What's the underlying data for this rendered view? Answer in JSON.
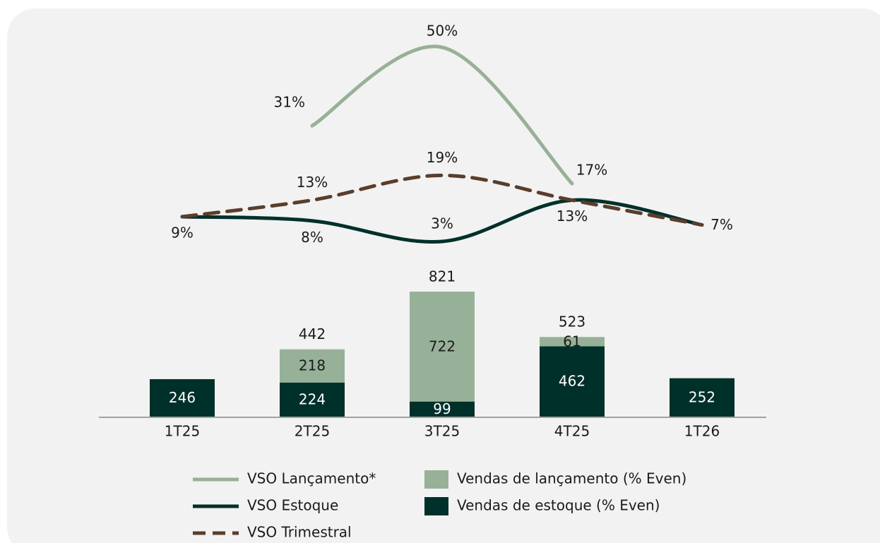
{
  "chart_data": {
    "type": "bar",
    "categories": [
      "1T25",
      "2T25",
      "3T25",
      "4T25",
      "1T26"
    ],
    "ylim": [
      0,
      1000
    ],
    "y2lim": [
      0,
      55
    ],
    "series": [
      {
        "name": "Vendas de estoque (% Even)",
        "type": "bar",
        "color": "#00302a",
        "label_color": "#ffffff",
        "values": [
          246,
          224,
          99,
          462,
          252
        ]
      },
      {
        "name": "Vendas de lançamento (% Even)",
        "type": "bar",
        "color": "#97b198",
        "label_color": "#1a1a1a",
        "values": [
          null,
          218,
          722,
          61,
          null
        ]
      },
      {
        "name": "VSO Lançamento*",
        "type": "line",
        "axis": "y2",
        "color": "#97b198",
        "values": [
          null,
          31,
          50,
          17,
          null
        ],
        "value_labels": [
          null,
          "31%",
          "50%",
          "17%",
          null
        ]
      },
      {
        "name": "VSO Estoque",
        "type": "line",
        "axis": "y2",
        "color": "#00302a",
        "values": [
          9,
          8,
          3,
          13,
          7
        ],
        "value_labels": [
          "9%",
          "8%",
          "3%",
          "13%",
          "7%"
        ]
      },
      {
        "name": "VSO Trimestral",
        "type": "line",
        "axis": "y2",
        "color": "#5a3d2b",
        "dash": true,
        "values": [
          9,
          13,
          19,
          13,
          7
        ],
        "value_labels": [
          null,
          "13%",
          "19%",
          null,
          null
        ]
      }
    ],
    "totals": [
      null,
      442,
      821,
      523,
      null
    ]
  }
}
